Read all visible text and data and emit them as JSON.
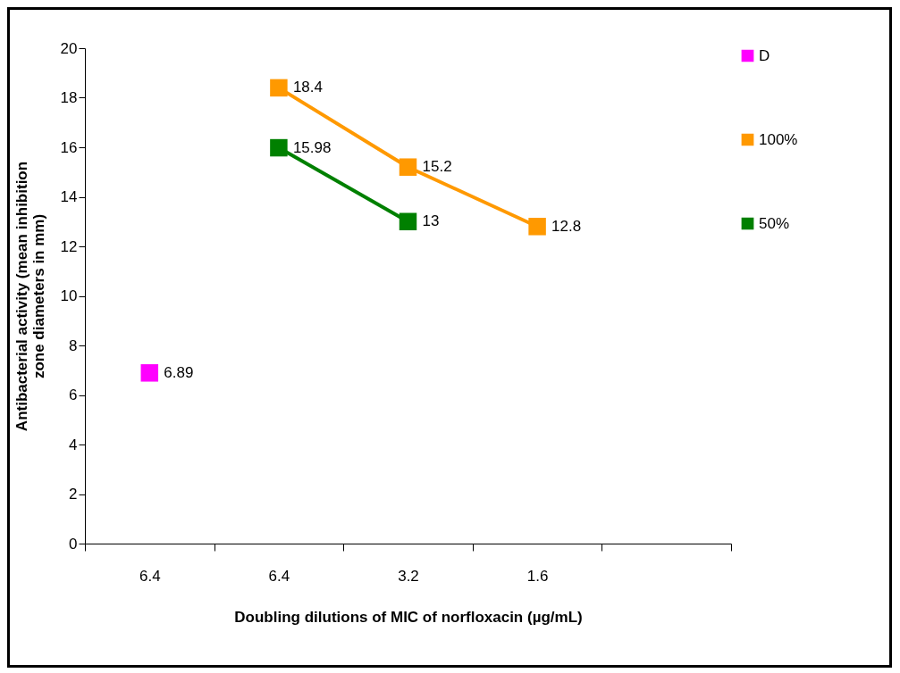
{
  "chart_data": {
    "type": "line",
    "xlabel": "Doubling dilutions of MIC of norfloxacin (µg/mL)",
    "ylabel": "Antibacterial activity (mean inhibition zone diameters in mm)",
    "categories": [
      "6.4",
      "6.4",
      "3.2",
      "1.6",
      null
    ],
    "series": [
      {
        "name": "D",
        "color": "#ff00ff",
        "values": [
          6.89,
          null,
          null,
          null,
          null
        ]
      },
      {
        "name": "100%",
        "color": "#ff9900",
        "values": [
          null,
          18.4,
          15.2,
          12.8,
          null
        ]
      },
      {
        "name": "50%",
        "color": "#008000",
        "values": [
          null,
          15.98,
          13,
          null,
          null
        ]
      }
    ],
    "ylim": [
      0,
      20
    ],
    "yticks": [
      0,
      2,
      4,
      6,
      8,
      10,
      12,
      14,
      16,
      18,
      20
    ],
    "grid": false,
    "legend": "right",
    "marker": "square",
    "line_style": "solid",
    "data_labels": true
  }
}
